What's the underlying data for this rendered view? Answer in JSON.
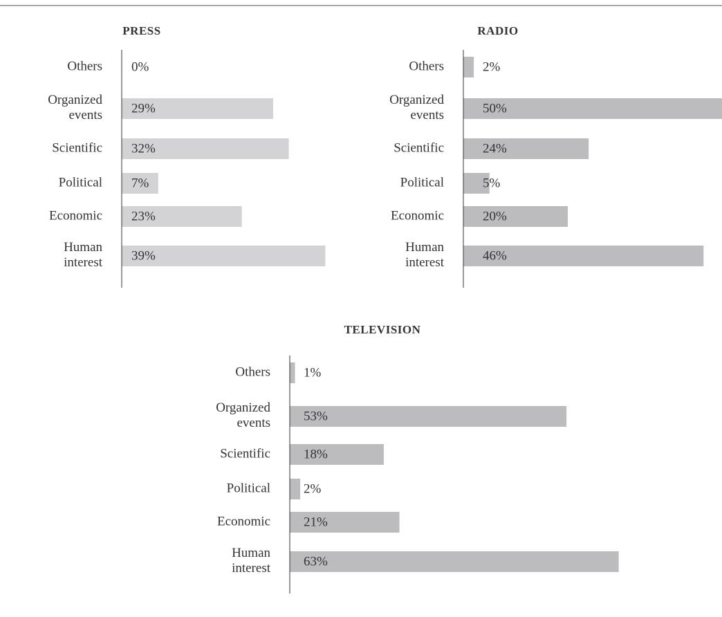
{
  "chart_data": [
    {
      "type": "bar",
      "title": "PRESS",
      "categories": [
        "Others",
        "Organized events",
        "Scientific",
        "Political",
        "Economic",
        "Human interest"
      ],
      "values": [
        0,
        29,
        32,
        7,
        23,
        39
      ],
      "value_labels": [
        "0%",
        "29%",
        "32%",
        "7%",
        "23%",
        "39%"
      ],
      "color": "#d3d3d5"
    },
    {
      "type": "bar",
      "title": "RADIO",
      "categories": [
        "Others",
        "Organized events",
        "Scientific",
        "Political",
        "Economic",
        "Human interest"
      ],
      "values": [
        2,
        50,
        24,
        5,
        20,
        46
      ],
      "value_labels": [
        "2%",
        "50%",
        "24%",
        "5%",
        "20%",
        "46%"
      ],
      "color": "#bcbcbe"
    },
    {
      "type": "bar",
      "title": "TELEVISION",
      "categories": [
        "Others",
        "Organized events",
        "Scientific",
        "Political",
        "Economic",
        "Human interest"
      ],
      "values": [
        1,
        53,
        18,
        2,
        21,
        63
      ],
      "value_labels": [
        "1%",
        "53%",
        "18%",
        "2%",
        "21%",
        "63%"
      ],
      "color": "#bcbcbe"
    }
  ]
}
